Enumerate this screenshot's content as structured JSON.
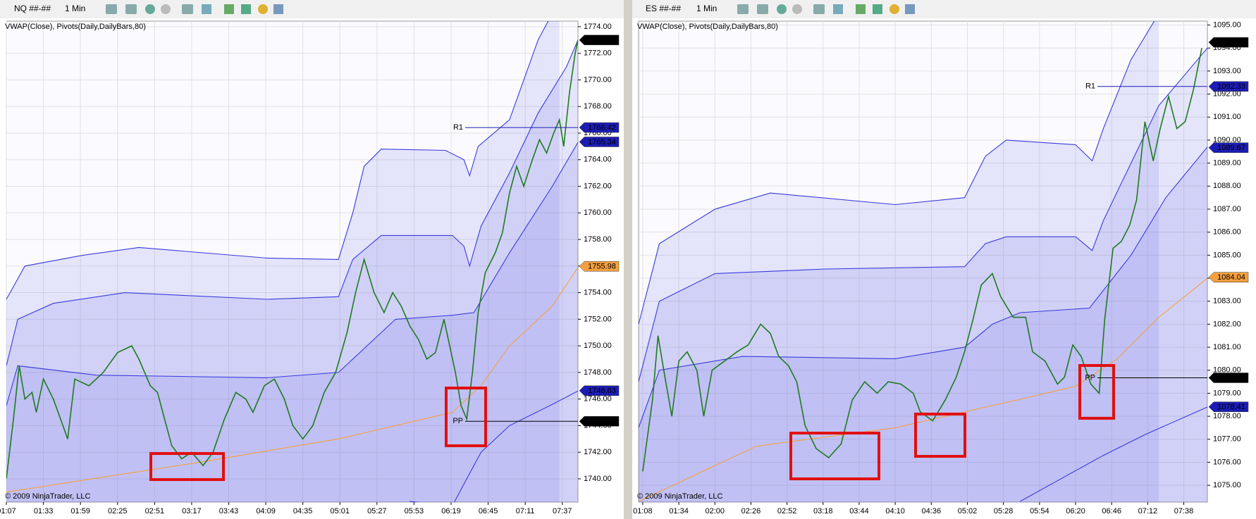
{
  "toolbars": [
    {
      "instrument": "NQ ##-##",
      "interval": "1 Min"
    },
    {
      "instrument": "ES ##-##",
      "interval": "1 Min"
    }
  ],
  "chart_data": [
    {
      "type": "line",
      "subtitle": "VWAP(Close), Pivots(Daily,DailyBars,80)",
      "credit": "© 2009 NinjaTrader, LLC",
      "grid": true,
      "xlim": [
        67,
        468
      ],
      "ylim": [
        1738.25,
        1774.42
      ],
      "xticks": [
        {
          "value": 67,
          "label": "01:07"
        },
        {
          "value": 93,
          "label": "01:33"
        },
        {
          "value": 119,
          "label": "01:59"
        },
        {
          "value": 145,
          "label": "02:25"
        },
        {
          "value": 171,
          "label": "02:51"
        },
        {
          "value": 197,
          "label": "03:17"
        },
        {
          "value": 223,
          "label": "03:43"
        },
        {
          "value": 249,
          "label": "04:09"
        },
        {
          "value": 275,
          "label": "04:35"
        },
        {
          "value": 301,
          "label": "05:01"
        },
        {
          "value": 327,
          "label": "05:27"
        },
        {
          "value": 353,
          "label": "05:53"
        },
        {
          "value": 379,
          "label": "06:19"
        },
        {
          "value": 405,
          "label": "06:45"
        },
        {
          "value": 431,
          "label": "07:11"
        },
        {
          "value": 457,
          "label": "07:37"
        }
      ],
      "yticks": [
        {
          "value": 1740,
          "label": "1740.00"
        },
        {
          "value": 1742,
          "label": "1742.00"
        },
        {
          "value": 1744,
          "label": "1744.00"
        },
        {
          "value": 1746,
          "label": "1746.00"
        },
        {
          "value": 1748,
          "label": "1748.00"
        },
        {
          "value": 1750,
          "label": "1750.00"
        },
        {
          "value": 1752,
          "label": "1752.00"
        },
        {
          "value": 1754,
          "label": "1754.00"
        },
        {
          "value": 1756,
          "label": "1756.00"
        },
        {
          "value": 1758,
          "label": "1758.00"
        },
        {
          "value": 1760,
          "label": "1760.00"
        },
        {
          "value": 1762,
          "label": "1762.00"
        },
        {
          "value": 1764,
          "label": "1764.00"
        },
        {
          "value": 1766,
          "label": "1766.00"
        },
        {
          "value": 1768,
          "label": "1768.00"
        },
        {
          "value": 1770,
          "label": "1770.00"
        },
        {
          "value": 1772,
          "label": "1772.00"
        },
        {
          "value": 1774,
          "label": "1774.00"
        }
      ],
      "series": [
        {
          "color": "#3a3adc",
          "fill": true,
          "x": [
            67,
            80,
            120,
            160,
            250,
            300,
            310,
            318,
            330,
            375,
            388,
            392,
            398,
            420,
            440,
            455
          ],
          "values": [
            1753.5,
            1756,
            1756.8,
            1757.4,
            1756.6,
            1756.5,
            1760,
            1763.5,
            1764.8,
            1764.7,
            1764,
            1762.8,
            1765,
            1767,
            1773,
            1776
          ]
        },
        {
          "color": "#3a3adc",
          "fill": true,
          "x": [
            67,
            75,
            100,
            150,
            250,
            300,
            310,
            330,
            380,
            388,
            392,
            400,
            420,
            440,
            460,
            468
          ],
          "values": [
            1748.5,
            1752,
            1753.2,
            1754,
            1753.5,
            1753.7,
            1756.5,
            1758.3,
            1758.3,
            1757.5,
            1756,
            1759,
            1763,
            1767.5,
            1771,
            1773
          ]
        },
        {
          "color": "#3a3adc",
          "fill": true,
          "x": [
            67,
            75,
            130,
            250,
            300,
            320,
            340,
            380,
            395,
            420,
            450,
            468
          ],
          "values": [
            1745.5,
            1748.5,
            1747.8,
            1747.6,
            1748,
            1750,
            1752,
            1752.3,
            1752.5,
            1757,
            1762,
            1765.3
          ]
        },
        {
          "color": "#3a3adc",
          "fill": false,
          "x": [
            350,
            380,
            390,
            400,
            420,
            450,
            468
          ],
          "values": [
            1738.3,
            1738,
            1740,
            1742,
            1744,
            1745.6,
            1746.6
          ]
        },
        {
          "color": "#f5a040",
          "fill": false,
          "x": [
            67,
            200,
            300,
            380,
            400,
            420,
            450,
            468
          ],
          "values": [
            1739,
            1741.2,
            1743,
            1745,
            1747,
            1750,
            1753,
            1755.9
          ]
        },
        {
          "color": "#1f7a1f",
          "fill": false,
          "x": [
            67,
            72,
            76,
            80,
            85,
            88,
            93,
            100,
            105,
            110,
            115,
            125,
            135,
            145,
            155,
            160,
            168,
            173,
            178,
            183,
            190,
            197,
            205,
            212,
            220,
            228,
            235,
            240,
            248,
            255,
            262,
            268,
            275,
            282,
            290,
            298,
            306,
            312,
            318,
            325,
            332,
            338,
            344,
            350,
            356,
            362,
            368,
            374,
            378,
            382,
            386,
            390,
            394,
            398,
            403,
            410,
            415,
            420,
            425,
            430,
            436,
            441,
            446,
            451,
            455,
            458,
            462,
            466,
            468
          ],
          "values": [
            1740,
            1744.5,
            1748.5,
            1746,
            1746.5,
            1745,
            1747.5,
            1746,
            1744.5,
            1743,
            1747.5,
            1747,
            1748,
            1749.5,
            1750,
            1749,
            1747,
            1746.5,
            1744.5,
            1742.5,
            1741.5,
            1742,
            1741,
            1742,
            1744.5,
            1746.5,
            1746,
            1745,
            1747,
            1747.5,
            1746,
            1744,
            1743,
            1744,
            1746.5,
            1748,
            1751,
            1754,
            1756.5,
            1754,
            1752.5,
            1754,
            1753,
            1751.5,
            1750.5,
            1749,
            1749.5,
            1752,
            1750,
            1748,
            1745.5,
            1744.5,
            1748,
            1752.5,
            1755.5,
            1757,
            1758.5,
            1761.5,
            1763.5,
            1762,
            1764,
            1765.5,
            1764.5,
            1766,
            1767,
            1765,
            1769,
            1772,
            1773
          ]
        }
      ],
      "pivots": [
        {
          "label": "R1",
          "value": 1766.42
        },
        {
          "label": "PP",
          "value": 1744.33
        }
      ],
      "price_tags": [
        {
          "value": 1773.0,
          "label": "1773.00",
          "color": "#000000"
        },
        {
          "value": 1766.42,
          "label": "1766.42",
          "color": "#1c1cb4"
        },
        {
          "value": 1765.34,
          "label": "1765.34",
          "color": "#1c1cb4"
        },
        {
          "value": 1755.98,
          "label": "1755.98",
          "color": "#f5a040"
        },
        {
          "value": 1746.63,
          "label": "1746.63",
          "color": "#1c1cb4"
        },
        {
          "value": 1744.33,
          "label": "1744.33",
          "color": "#000000"
        }
      ]
    },
    {
      "type": "line",
      "subtitle": "VWAP(Close), Pivots(Daily,DailyBars,80)",
      "credit": "© 2009 NinjaTrader, LLC",
      "grid": true,
      "xlim": [
        65,
        475
      ],
      "ylim": [
        1074.27,
        1095.17
      ],
      "xticks": [
        {
          "value": 68,
          "label": "01:08"
        },
        {
          "value": 94,
          "label": "01:34"
        },
        {
          "value": 120,
          "label": "02:00"
        },
        {
          "value": 146,
          "label": "02:26"
        },
        {
          "value": 172,
          "label": "02:52"
        },
        {
          "value": 198,
          "label": "03:18"
        },
        {
          "value": 224,
          "label": "03:44"
        },
        {
          "value": 250,
          "label": "04:10"
        },
        {
          "value": 276,
          "label": "04:36"
        },
        {
          "value": 302,
          "label": "05:02"
        },
        {
          "value": 328,
          "label": "05:28"
        },
        {
          "value": 354,
          "label": "05:54"
        },
        {
          "value": 380,
          "label": "06:20"
        },
        {
          "value": 406,
          "label": "06:46"
        },
        {
          "value": 432,
          "label": "07:12"
        },
        {
          "value": 458,
          "label": "07:38"
        }
      ],
      "yticks": [
        {
          "value": 1075,
          "label": "1075.00"
        },
        {
          "value": 1076,
          "label": "1076.00"
        },
        {
          "value": 1077,
          "label": "1077.00"
        },
        {
          "value": 1078,
          "label": "1078.00"
        },
        {
          "value": 1079,
          "label": "1079.00"
        },
        {
          "value": 1080,
          "label": "1080.00"
        },
        {
          "value": 1081,
          "label": "1081.00"
        },
        {
          "value": 1082,
          "label": "1082.00"
        },
        {
          "value": 1083,
          "label": "1083.00"
        },
        {
          "value": 1084,
          "label": "1084.00"
        },
        {
          "value": 1085,
          "label": "1085.00"
        },
        {
          "value": 1086,
          "label": "1086.00"
        },
        {
          "value": 1087,
          "label": "1087.00"
        },
        {
          "value": 1088,
          "label": "1088.00"
        },
        {
          "value": 1089,
          "label": "1089.00"
        },
        {
          "value": 1090,
          "label": "1090.00"
        },
        {
          "value": 1091,
          "label": "1091.00"
        },
        {
          "value": 1092,
          "label": "1092.00"
        },
        {
          "value": 1093,
          "label": "1093.00"
        },
        {
          "value": 1094,
          "label": "1094.00"
        },
        {
          "value": 1095,
          "label": "1095.00"
        }
      ],
      "series": [
        {
          "color": "#3a3adc",
          "fill": true,
          "x": [
            65,
            80,
            120,
            160,
            250,
            300,
            315,
            330,
            380,
            392,
            400,
            420,
            440
          ],
          "values": [
            1082,
            1085.5,
            1087,
            1087.7,
            1087.2,
            1087.5,
            1089.3,
            1090,
            1089.8,
            1089.1,
            1090.5,
            1093.5,
            1095.5
          ]
        },
        {
          "color": "#3a3adc",
          "fill": true,
          "x": [
            65,
            80,
            120,
            200,
            300,
            315,
            330,
            380,
            392,
            400,
            420,
            440,
            475
          ],
          "values": [
            1079.5,
            1083,
            1084.2,
            1084.4,
            1084.5,
            1085.5,
            1085.8,
            1085.8,
            1085.2,
            1086.5,
            1089,
            1091.5,
            1094
          ]
        },
        {
          "color": "#3a3adc",
          "fill": true,
          "x": [
            65,
            80,
            140,
            250,
            300,
            320,
            340,
            390,
            420,
            445,
            475
          ],
          "values": [
            1077.5,
            1080,
            1080.6,
            1080.5,
            1081,
            1082,
            1082.5,
            1082.7,
            1085,
            1087.5,
            1089.7
          ]
        },
        {
          "color": "#3a3adc",
          "fill": false,
          "x": [
            340,
            370,
            400,
            430,
            475
          ],
          "values": [
            1074.3,
            1075.3,
            1076.3,
            1077.2,
            1078.4
          ]
        },
        {
          "color": "#f5a040",
          "fill": false,
          "x": [
            65,
            150,
            250,
            330,
            380,
            410,
            440,
            475
          ],
          "values": [
            1074.3,
            1076.7,
            1077.5,
            1078.6,
            1079.3,
            1080.5,
            1082.3,
            1084.0
          ]
        },
        {
          "color": "#1f7a1f",
          "fill": false,
          "x": [
            68,
            75,
            79,
            84,
            89,
            94,
            100,
            107,
            112,
            118,
            127,
            136,
            144,
            153,
            160,
            166,
            173,
            179,
            185,
            193,
            202,
            211,
            219,
            228,
            237,
            245,
            254,
            263,
            268,
            277,
            286,
            294,
            300,
            306,
            312,
            320,
            326,
            335,
            344,
            349,
            358,
            367,
            372,
            378,
            384,
            391,
            397,
            401,
            407,
            413,
            419,
            424,
            430,
            436,
            441,
            447,
            453,
            459,
            465,
            471
          ],
          "values": [
            1075.6,
            1078.7,
            1081.5,
            1079.7,
            1078,
            1080.4,
            1080.8,
            1080,
            1078,
            1080,
            1080.4,
            1080.8,
            1081.1,
            1082,
            1081.6,
            1080.6,
            1080.2,
            1079.5,
            1077.6,
            1076.6,
            1076.2,
            1076.8,
            1078.7,
            1079.5,
            1079,
            1079.5,
            1079.4,
            1079,
            1078.2,
            1077.8,
            1078.7,
            1079.7,
            1080.8,
            1082.2,
            1083.7,
            1084.2,
            1083.2,
            1082.3,
            1082.3,
            1080.8,
            1080.4,
            1079.4,
            1079.7,
            1081.1,
            1080.6,
            1079.4,
            1079,
            1082.2,
            1085.3,
            1085.6,
            1086.3,
            1087.4,
            1090.8,
            1089.1,
            1090.5,
            1091.9,
            1090.5,
            1090.8,
            1092.2,
            1094
          ]
        }
      ],
      "pivots": [
        {
          "label": "R1",
          "value": 1092.33
        },
        {
          "label": "PP",
          "value": 1079.67
        }
      ],
      "price_tags": [
        {
          "value": 1094.25,
          "label": "1094.25",
          "color": "#000000"
        },
        {
          "value": 1092.33,
          "label": "1092.33",
          "color": "#1c1cb4"
        },
        {
          "value": 1089.67,
          "label": "1089.67",
          "color": "#1c1cb4"
        },
        {
          "value": 1084.04,
          "label": "1084.04",
          "color": "#f5a040"
        },
        {
          "value": 1079.67,
          "label": "1079.67",
          "color": "#000000"
        },
        {
          "value": 1078.41,
          "label": "1078.41",
          "color": "#1c1cb4"
        }
      ]
    }
  ]
}
